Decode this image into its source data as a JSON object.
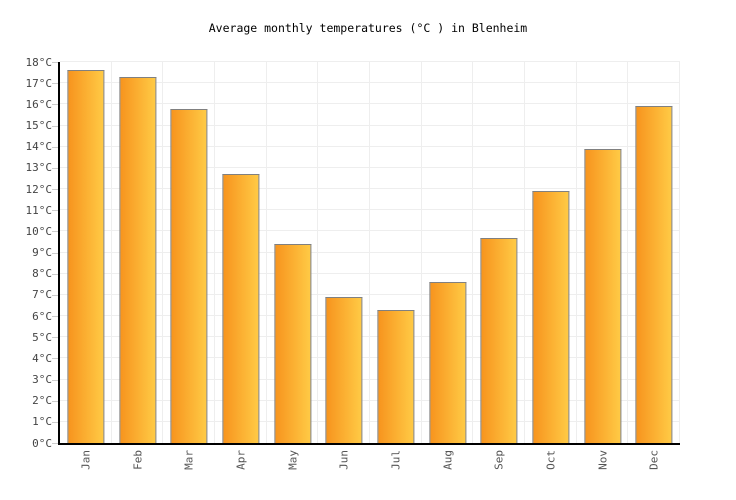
{
  "chart_data": {
    "type": "bar",
    "title": "Average monthly temperatures (°C ) in Blenheim",
    "categories": [
      "Jan",
      "Feb",
      "Mar",
      "Apr",
      "May",
      "Jun",
      "Jul",
      "Aug",
      "Sep",
      "Oct",
      "Nov",
      "Dec"
    ],
    "values": [
      17.6,
      17.3,
      15.8,
      12.7,
      9.4,
      6.9,
      6.3,
      7.6,
      9.7,
      11.9,
      13.9,
      15.9
    ],
    "unit": "°C",
    "xlabel": "",
    "ylabel": "",
    "ylim": [
      0,
      18
    ],
    "ytick_step": 1,
    "ytick_suffix": "°C",
    "grid": true,
    "legend": false,
    "colors": {
      "bar_gradient_left": "#F7941E",
      "bar_gradient_right": "#FFCA45",
      "bar_border": "#808080",
      "gridline": "#EEEEEE",
      "axis": "#000000",
      "tick": "#CCCCCC",
      "x_label_text": "#555555",
      "y_label_text": "#444444",
      "title_text": "#000000",
      "background": "#FFFFFF"
    }
  }
}
